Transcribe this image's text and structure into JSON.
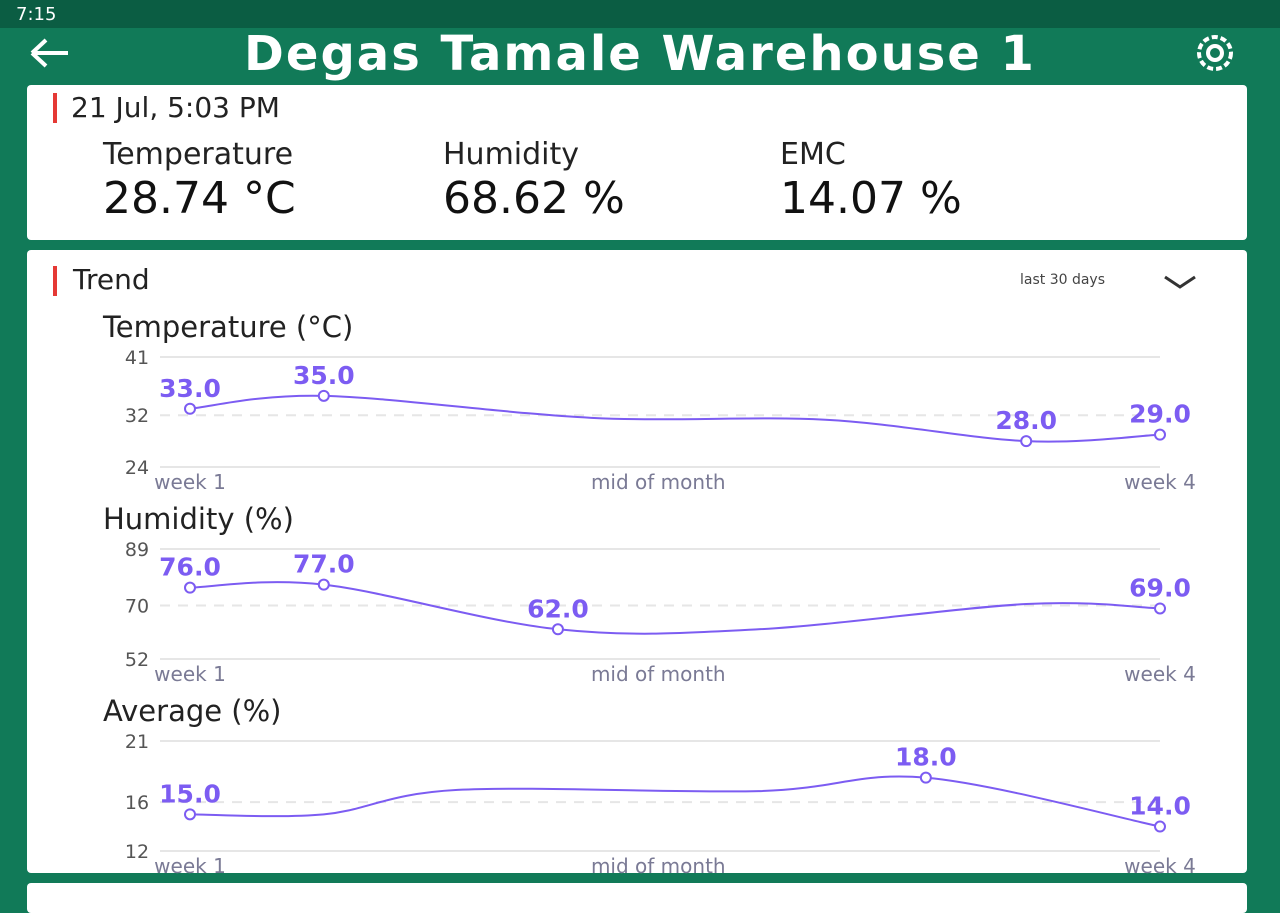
{
  "status_bar": {
    "time": "7:15"
  },
  "header": {
    "title": "Degas Tamale Warehouse 1"
  },
  "latest": {
    "timestamp": "21 Jul, 5:03 PM",
    "readings": [
      {
        "label": "Temperature",
        "value": "28.74 °C"
      },
      {
        "label": "Humidity",
        "value": "68.62 %"
      },
      {
        "label": "EMC",
        "value": "14.07 %"
      }
    ]
  },
  "trend": {
    "title": "Trend",
    "range": "last 30 days"
  },
  "chart_data": [
    {
      "type": "line",
      "title": "Temperature (°C)",
      "color": "#7c5cf2",
      "x": [
        1,
        5,
        13,
        20,
        26,
        30
      ],
      "values": [
        33,
        35,
        31.6,
        31.3,
        28,
        29
      ],
      "value_labels": [
        "33.0",
        "35.0",
        null,
        null,
        "28.0",
        "29.0"
      ],
      "xlim": [
        1,
        30
      ],
      "ylim": [
        24,
        41
      ],
      "xticks": [
        {
          "value": 1,
          "label": "week 1"
        },
        {
          "value": 15,
          "label": "mid of month"
        },
        {
          "value": 30,
          "label": "week 4"
        }
      ],
      "yticks": [
        24,
        32,
        41
      ],
      "grid": true
    },
    {
      "type": "line",
      "title": "Humidity (%)",
      "color": "#7c5cf2",
      "x": [
        1,
        5,
        12,
        18,
        26,
        30
      ],
      "values": [
        76,
        77,
        62,
        62,
        70.5,
        69
      ],
      "value_labels": [
        "76.0",
        "77.0",
        "62.0",
        null,
        null,
        "69.0"
      ],
      "xlim": [
        1,
        30
      ],
      "ylim": [
        52,
        89
      ],
      "xticks": [
        {
          "value": 1,
          "label": "week 1"
        },
        {
          "value": 15,
          "label": "mid of month"
        },
        {
          "value": 30,
          "label": "week 4"
        }
      ],
      "yticks": [
        52,
        70,
        89
      ],
      "grid": true
    },
    {
      "type": "line",
      "title": "Average (%)",
      "color": "#7c5cf2",
      "x": [
        1,
        5,
        9,
        18,
        23,
        30
      ],
      "values": [
        15,
        15,
        17,
        16.9,
        18,
        14
      ],
      "value_labels": [
        "15.0",
        null,
        null,
        null,
        "18.0",
        "14.0"
      ],
      "xlim": [
        1,
        30
      ],
      "ylim": [
        12,
        21
      ],
      "xticks": [
        {
          "value": 1,
          "label": "week 1"
        },
        {
          "value": 15,
          "label": "mid of month"
        },
        {
          "value": 30,
          "label": "week 4"
        }
      ],
      "yticks": [
        12,
        16,
        21
      ],
      "grid": true
    }
  ]
}
